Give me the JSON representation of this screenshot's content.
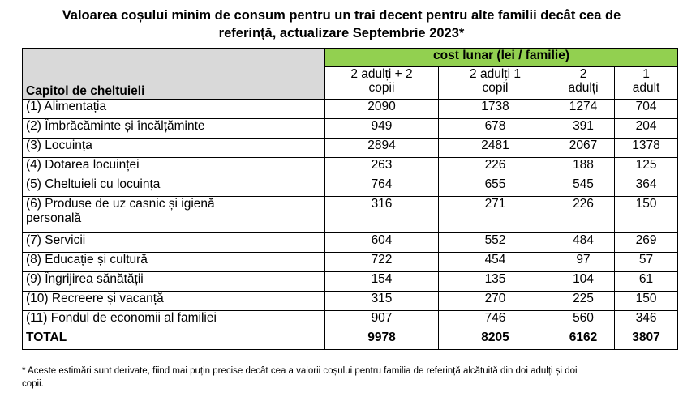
{
  "title": {
    "line1": "Valoarea coșului minim de consum pentru un trai decent pentru alte familii decât cea de",
    "line2": "referință, actualizare Septembrie 2023*"
  },
  "table": {
    "row_header": "Capitol de cheltuieli",
    "group_header": "cost lunar (lei / familie)",
    "columns": [
      {
        "line1": "2 adulți + 2",
        "line2": "copii"
      },
      {
        "line1": "2 adulți 1",
        "line2": "copil"
      },
      {
        "line1": "2",
        "line2": "adulți"
      },
      {
        "line1": "1",
        "line2": "adult"
      }
    ],
    "rows": [
      {
        "label": "(1) Alimentația",
        "values": [
          "2090",
          "1738",
          "1274",
          "704"
        ]
      },
      {
        "label": "(2) Îmbrăcăminte și încălțăminte",
        "values": [
          "949",
          "678",
          "391",
          "204"
        ]
      },
      {
        "label": "(3) Locuința",
        "values": [
          "2894",
          "2481",
          "2067",
          "1378"
        ]
      },
      {
        "label": "(4) Dotarea locuinței",
        "values": [
          "263",
          "226",
          "188",
          "125"
        ]
      },
      {
        "label": "(5) Cheltuieli cu locuința",
        "values": [
          "764",
          "655",
          "545",
          "364"
        ]
      },
      {
        "label": "(6) Produse de uz casnic și igienă",
        "label2": "personală",
        "values": [
          "316",
          "271",
          "226",
          "150"
        ]
      },
      {
        "label": "(7) Servicii",
        "values": [
          "604",
          "552",
          "484",
          "269"
        ]
      },
      {
        "label": "(8) Educație și cultură",
        "values": [
          "722",
          "454",
          "97",
          "57"
        ]
      },
      {
        "label": "(9) Îngrijirea sănătății",
        "values": [
          "154",
          "135",
          "104",
          "61"
        ]
      },
      {
        "label": "(10) Recreere și vacanță",
        "values": [
          "315",
          "270",
          "225",
          "150"
        ]
      },
      {
        "label": "(11) Fondul de economii al familiei",
        "values": [
          "907",
          "746",
          "560",
          "346"
        ]
      }
    ],
    "total": {
      "label": "TOTAL",
      "values": [
        "9978",
        "8205",
        "6162",
        "3807"
      ]
    }
  },
  "footnote": {
    "line1": "* Aceste estimări sunt derivate, fiind mai puțin precise decât cea a valorii coșului pentru familia de referință alcătuită din doi adulți și doi",
    "line2": "copii."
  },
  "colors": {
    "header_gray": "#d9d9d9",
    "header_green": "#92d050"
  }
}
